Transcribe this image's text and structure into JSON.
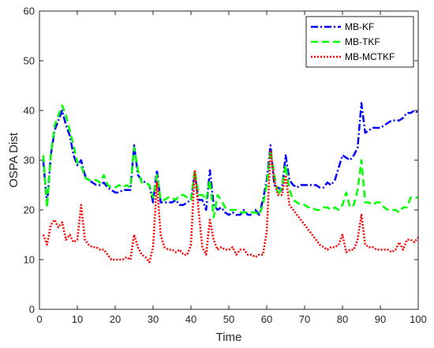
{
  "chart_data": {
    "type": "line",
    "xlabel": "Time",
    "ylabel": "OSPA Dist",
    "xlim": [
      0,
      100
    ],
    "ylim": [
      0,
      60
    ],
    "xticks": [
      0,
      10,
      20,
      30,
      40,
      50,
      60,
      70,
      80,
      90,
      100
    ],
    "yticks": [
      0,
      10,
      20,
      30,
      40,
      50,
      60
    ],
    "grid": false,
    "legend_position": "top-right",
    "series": [
      {
        "name": "MB-KF",
        "color": "#0000ff",
        "dash": "dash-dot",
        "x": [
          1,
          2,
          3,
          4,
          5,
          6,
          7,
          8,
          9,
          10,
          11,
          12,
          13,
          14,
          15,
          16,
          17,
          18,
          19,
          20,
          21,
          22,
          23,
          24,
          25,
          26,
          27,
          28,
          29,
          30,
          31,
          32,
          33,
          34,
          35,
          36,
          37,
          38,
          39,
          40,
          41,
          42,
          43,
          44,
          45,
          46,
          47,
          48,
          49,
          50,
          51,
          52,
          53,
          54,
          55,
          56,
          57,
          58,
          59,
          60,
          61,
          62,
          63,
          64,
          65,
          66,
          67,
          68,
          69,
          70,
          71,
          72,
          73,
          74,
          75,
          76,
          77,
          78,
          79,
          80,
          81,
          82,
          83,
          84,
          85,
          86,
          87,
          88,
          89,
          90,
          91,
          92,
          93,
          94,
          95,
          96,
          97,
          98,
          99,
          100
        ],
        "y": [
          30,
          21,
          31,
          36,
          38,
          40,
          37,
          35,
          31,
          29,
          30,
          27,
          26,
          25.5,
          25,
          25,
          25.5,
          24.5,
          24,
          23.5,
          23.5,
          24,
          24,
          24,
          33,
          27,
          26,
          25.5,
          25,
          21.5,
          28,
          21.5,
          21.5,
          21.5,
          21.5,
          22,
          21,
          21,
          21.5,
          22,
          27.5,
          22,
          22,
          20,
          28,
          21,
          20,
          20.5,
          19.5,
          19,
          19.5,
          19,
          19,
          20,
          19,
          19,
          20,
          19,
          22,
          26,
          33,
          25,
          24.5,
          24,
          31,
          26,
          25,
          24.5,
          25,
          25,
          25,
          25,
          25,
          24.5,
          24.5,
          25.5,
          25,
          26,
          28.5,
          31,
          30.5,
          30,
          31,
          32.5,
          41.5,
          35.5,
          36,
          36.5,
          36.5,
          36.5,
          37,
          37.5,
          38,
          38,
          38,
          38.5,
          39.5,
          39.5,
          40,
          39.5
        ]
      },
      {
        "name": "MB-TKF",
        "color": "#00ff00",
        "dash": "dashed",
        "x": [
          1,
          2,
          3,
          4,
          5,
          6,
          7,
          8,
          9,
          10,
          11,
          12,
          13,
          14,
          15,
          16,
          17,
          18,
          19,
          20,
          21,
          22,
          23,
          24,
          25,
          26,
          27,
          28,
          29,
          30,
          31,
          32,
          33,
          34,
          35,
          36,
          37,
          38,
          39,
          40,
          41,
          42,
          43,
          44,
          45,
          46,
          47,
          48,
          49,
          50,
          51,
          52,
          53,
          54,
          55,
          56,
          57,
          58,
          59,
          60,
          61,
          62,
          63,
          64,
          65,
          66,
          67,
          68,
          69,
          70,
          71,
          72,
          73,
          74,
          75,
          76,
          77,
          78,
          79,
          80,
          81,
          82,
          83,
          84,
          85,
          86,
          87,
          88,
          89,
          90,
          91,
          92,
          93,
          94,
          95,
          96,
          97,
          98,
          99,
          100
        ],
        "y": [
          31,
          20.5,
          31,
          37,
          39,
          41,
          39,
          36,
          33,
          29.5,
          29,
          26.5,
          26,
          26,
          26,
          25.5,
          27,
          25,
          24.5,
          24.5,
          25,
          24.5,
          25,
          24.5,
          32.5,
          28,
          25.5,
          25.5,
          25,
          22.5,
          27,
          22,
          22,
          22.5,
          22.5,
          22,
          23,
          23,
          22.5,
          22,
          28,
          23,
          23,
          22,
          26,
          18.5,
          23,
          22,
          20.5,
          20,
          20,
          20,
          19.5,
          19.5,
          19.5,
          19.5,
          19.5,
          19,
          21,
          25,
          32,
          27,
          23,
          24.5,
          29,
          24,
          22,
          21.5,
          21,
          21,
          20.5,
          20.5,
          20,
          20,
          20.5,
          20.5,
          20,
          20.5,
          20,
          21,
          23.5,
          20.5,
          21,
          24,
          30,
          21.5,
          21.5,
          21,
          21.5,
          21.5,
          20.5,
          20,
          20,
          20,
          19.5,
          20.5,
          20.5,
          22.5,
          22.5,
          22.5
        ]
      },
      {
        "name": "MB-MCTKF",
        "color": "#ff0000",
        "dash": "dotted",
        "x": [
          1,
          2,
          3,
          4,
          5,
          6,
          7,
          8,
          9,
          10,
          11,
          12,
          13,
          14,
          15,
          16,
          17,
          18,
          19,
          20,
          21,
          22,
          23,
          24,
          25,
          26,
          27,
          28,
          29,
          30,
          31,
          32,
          33,
          34,
          35,
          36,
          37,
          38,
          39,
          40,
          41,
          42,
          43,
          44,
          45,
          46,
          47,
          48,
          49,
          50,
          51,
          52,
          53,
          54,
          55,
          56,
          57,
          58,
          59,
          60,
          61,
          62,
          63,
          64,
          65,
          66,
          67,
          68,
          69,
          70,
          71,
          72,
          73,
          74,
          75,
          76,
          77,
          78,
          79,
          80,
          81,
          82,
          83,
          84,
          85,
          86,
          87,
          88,
          89,
          90,
          91,
          92,
          93,
          94,
          95,
          96,
          97,
          98,
          99,
          100
        ],
        "y": [
          15,
          13,
          17,
          18,
          16.5,
          17.5,
          14,
          15,
          13.5,
          14,
          21,
          14,
          13,
          12.5,
          12.5,
          12,
          12,
          11,
          10,
          10,
          10,
          10,
          10.5,
          10,
          15,
          12.5,
          11,
          10.5,
          9.5,
          12.5,
          25.5,
          15,
          12.5,
          12,
          12,
          11.5,
          12,
          11,
          11,
          13,
          28,
          20,
          12.5,
          11,
          18,
          14,
          12,
          12.5,
          12,
          12,
          12.5,
          11,
          12,
          12,
          11,
          11,
          10.5,
          11,
          11,
          15.5,
          32,
          26,
          23,
          23,
          27,
          21,
          20,
          19,
          18,
          17,
          16,
          15,
          14,
          13,
          12.5,
          12,
          12.5,
          12.5,
          13,
          15,
          11.5,
          12,
          12,
          14,
          19,
          13,
          12.5,
          12.5,
          12,
          12,
          12,
          12,
          11.5,
          12,
          13.5,
          12,
          14,
          14,
          13.5,
          14.5
        ]
      }
    ]
  }
}
